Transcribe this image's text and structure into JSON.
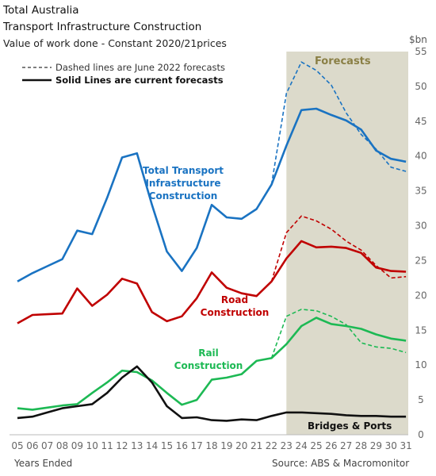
{
  "header": {
    "title_line1": "Total Australia",
    "title_line2": "Transport Infrastructure Construction",
    "subtitle": "Value of work done - Constant 2020/21prices",
    "unit": "$bn"
  },
  "footer": {
    "xlabel": "Years Ended",
    "source": "Source: ABS & Macromonitor"
  },
  "chart_data": {
    "type": "line",
    "x": [
      "05",
      "06",
      "07",
      "08",
      "09",
      "10",
      "11",
      "12",
      "13",
      "14",
      "15",
      "16",
      "17",
      "18",
      "19",
      "20",
      "21",
      "22",
      "23",
      "24",
      "25",
      "26",
      "27",
      "28",
      "29",
      "30",
      "31"
    ],
    "ylim": [
      0,
      55
    ],
    "yticks": [
      0,
      5,
      10,
      15,
      20,
      25,
      30,
      35,
      40,
      45,
      50,
      55
    ],
    "forecast_label": "Forecasts",
    "forecast_start": "23",
    "legend": {
      "dashed": "Dashed lines are June 2022 forecasts",
      "solid": "Solid Lines are current forecasts"
    },
    "series": [
      {
        "name": "Total Transport Infrastructure Construction",
        "label_lines": [
          "Total Transport",
          "Infrastructure",
          "Construction"
        ],
        "color": "#1a73c2",
        "values": [
          22,
          23.2,
          24.2,
          25.2,
          29.3,
          28.8,
          34,
          39.8,
          40.4,
          33,
          26.3,
          23.5,
          26.8,
          33,
          31.2,
          31,
          32.4,
          35.9,
          41.5,
          46.6,
          46.8,
          45.9,
          45.1,
          43.8,
          40.8,
          39.6,
          39.2
        ],
        "forecast_2022": [
          null,
          null,
          null,
          null,
          null,
          null,
          null,
          null,
          null,
          null,
          null,
          null,
          null,
          null,
          null,
          null,
          null,
          35.9,
          49,
          53.5,
          52.3,
          50.2,
          46.2,
          43.1,
          41,
          38.4,
          37.8
        ]
      },
      {
        "name": "Road Construction",
        "label_lines": [
          "Road",
          "Construction"
        ],
        "color": "#c00000",
        "values": [
          16,
          17.2,
          17.3,
          17.4,
          21,
          18.5,
          20.1,
          22.4,
          21.7,
          17.6,
          16.3,
          17,
          19.6,
          23.3,
          21.1,
          20.3,
          19.9,
          22,
          25.3,
          27.8,
          26.9,
          27,
          26.8,
          26.1,
          24,
          23.5,
          23.4
        ],
        "forecast_2022": [
          null,
          null,
          null,
          null,
          null,
          null,
          null,
          null,
          null,
          null,
          null,
          null,
          null,
          null,
          null,
          null,
          null,
          22,
          29,
          31.4,
          30.7,
          29.5,
          27.8,
          26.5,
          24.3,
          22.5,
          22.7
        ]
      },
      {
        "name": "Rail Construction",
        "label_lines": [
          "Rail",
          "Construction"
        ],
        "color": "#1db954",
        "values": [
          3.8,
          3.6,
          3.9,
          4.2,
          4.4,
          6,
          7.5,
          9.2,
          9,
          7.8,
          6,
          4.3,
          5,
          7.9,
          8.2,
          8.7,
          10.6,
          11,
          13,
          15.6,
          16.8,
          15.9,
          15.6,
          15.2,
          14.4,
          13.8,
          13.5
        ],
        "forecast_2022": [
          null,
          null,
          null,
          null,
          null,
          null,
          null,
          null,
          null,
          null,
          null,
          null,
          null,
          null,
          null,
          null,
          null,
          11,
          17,
          18,
          17.8,
          17,
          15.8,
          13.2,
          12.6,
          12.4,
          11.8
        ]
      },
      {
        "name": "Bridges & Ports",
        "label_lines": [
          "Bridges & Ports"
        ],
        "color": "#111111",
        "values": [
          2.4,
          2.6,
          3.2,
          3.8,
          4.1,
          4.4,
          6,
          8.2,
          9.8,
          7.5,
          4.1,
          2.4,
          2.5,
          2.1,
          2,
          2.2,
          2.1,
          2.7,
          3.2,
          3.2,
          3.1,
          3,
          2.8,
          2.7,
          2.7,
          2.6,
          2.6
        ],
        "forecast_2022": []
      }
    ]
  }
}
